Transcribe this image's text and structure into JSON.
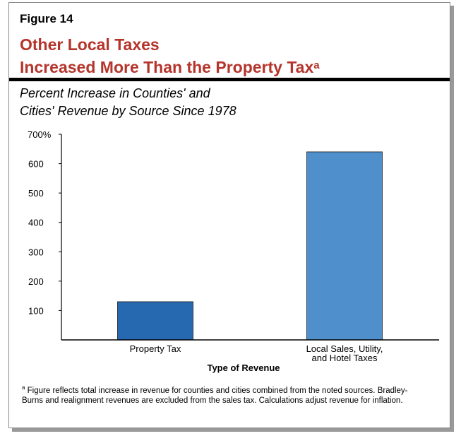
{
  "figure_label": "Figure 14",
  "title_line1": "Other Local Taxes",
  "title_line2": "Increased More Than the Property Tax",
  "title_note_marker": "a",
  "subtitle_line1": "Percent Increase in Counties' and",
  "subtitle_line2": "Cities' Revenue by Source Since 1978",
  "footnote_marker": "a",
  "footnote": "Figure reflects total increase in revenue for counties and cities combined from the noted sources. Bradley-Burns and realignment revenues are excluded from the sales tax. Calculations adjust revenue for inflation.",
  "chart_data": {
    "type": "bar",
    "categories": [
      "Property Tax",
      "Local Sales, Utility, and Hotel Taxes"
    ],
    "category_lines": [
      [
        "Property Tax"
      ],
      [
        "Local Sales, Utility,",
        "and Hotel Taxes"
      ]
    ],
    "values": [
      130,
      640
    ],
    "colors": [
      "#2769b1",
      "#4f8fcb"
    ],
    "xlabel": "Type of Revenue",
    "ylabel": "",
    "ylim": [
      0,
      700
    ],
    "yticks": [
      100,
      200,
      300,
      400,
      500,
      600,
      700
    ],
    "ytick_labels": [
      "100",
      "200",
      "300",
      "400",
      "500",
      "600",
      "700%"
    ],
    "grid": false
  }
}
